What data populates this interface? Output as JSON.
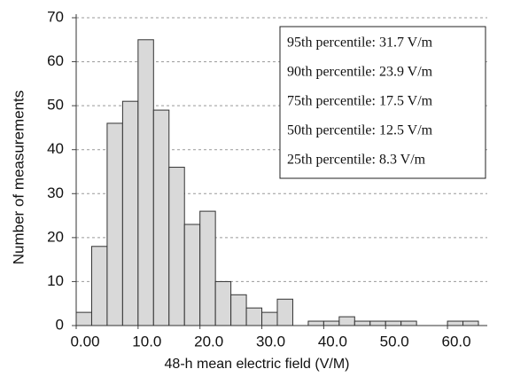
{
  "chart_data": {
    "type": "histogram",
    "x_label": "48-h mean electric field (V/M)",
    "y_label": "Number of measurements",
    "bins": [
      0,
      2.5,
      5,
      7.5,
      10,
      12.5,
      15,
      17.5,
      20,
      22.5,
      25,
      27.5,
      30,
      32.5,
      35,
      37.5,
      40,
      42.5,
      45,
      47.5,
      50,
      52.5,
      55,
      57.5,
      60,
      62.5,
      65
    ],
    "values": [
      3,
      18,
      46,
      51,
      65,
      49,
      36,
      23,
      26,
      10,
      7,
      4,
      3,
      6,
      0,
      1,
      1,
      2,
      1,
      1,
      1,
      1,
      0,
      0,
      1,
      1
    ],
    "color": "#d9d9d9",
    "xlim": [
      0,
      65
    ],
    "xticks": [
      {
        "value": 0,
        "label": "0.00"
      },
      {
        "value": 10,
        "label": "10.0"
      },
      {
        "value": 20,
        "label": "20.0"
      },
      {
        "value": 30,
        "label": "30.0"
      },
      {
        "value": 40,
        "label": "40.0"
      },
      {
        "value": 50,
        "label": "50.0"
      },
      {
        "value": 60,
        "label": "60.0"
      }
    ],
    "ylim": [
      0,
      70
    ],
    "yticks": [
      0,
      10,
      20,
      30,
      40,
      50,
      60,
      70
    ],
    "grid": true,
    "annotations": [
      "95th percentile: 31.7 V/m",
      "90th percentile: 23.9 V/m",
      "75th percentile: 17.5 V/m",
      "50th percentile: 12.5 V/m",
      "25th percentile: 8.3 V/m"
    ]
  }
}
